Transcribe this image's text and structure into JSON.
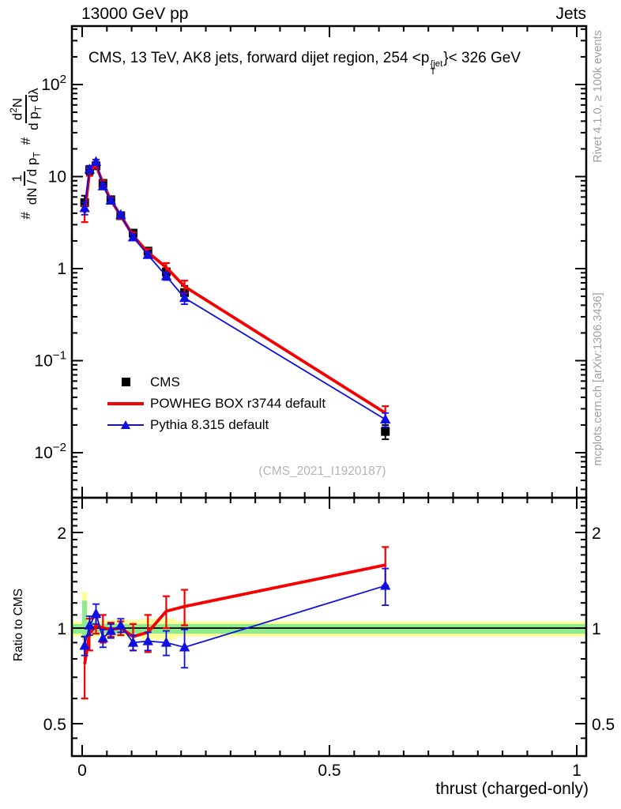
{
  "header": {
    "left": "13000 GeV pp",
    "right": "Jets"
  },
  "title": {
    "prefix": "CMS, 13 TeV, AK8 jets, forward dijet region, 254 <p",
    "sup": "{jet",
    "sub": "T",
    "suffix": "}< 326 GeV"
  },
  "ylabel_main": {
    "hash1": "#",
    "frac1": {
      "num": "1",
      "den_pre": "dN / d p",
      "den_sub": "T"
    },
    "hash2": "#",
    "frac2": {
      "num_pre": "d",
      "num_sup": "2",
      "num_post": "N",
      "den_pre": "d p",
      "den_sub": "T",
      "den_post": " dλ"
    }
  },
  "ylabel_ratio": "Ratio to CMS",
  "xlabel": "thrust (charged-only)",
  "watermark": "(CMS_2021_I1920187)",
  "side_notes": {
    "top": "Rivet 4.1.0, ≥ 100k events",
    "bottom": "mcplots.cern.ch [arXiv:1306.3436]"
  },
  "legend": {
    "items": [
      {
        "label": "CMS",
        "marker": "black-square"
      },
      {
        "label": "POWHEG BOX r3744 default",
        "marker": "red-line"
      },
      {
        "label": "Pythia 8.315 default",
        "marker": "blue-line-triangle"
      }
    ]
  },
  "colors": {
    "cms": "#000000",
    "powheg": "#f40000",
    "pythia": "#0f0fe0",
    "band_yellow": "#ffff99",
    "band_green": "#8fe98f",
    "gray_text": "#9e9e9e",
    "watermark_text": "#b4b4b4"
  },
  "chart_data": {
    "type": "line",
    "title": "CMS, 13 TeV, AK8 jets, forward dijet region, 254 <p^{jet}_T}< 326 GeV",
    "xlabel": "thrust (charged-only)",
    "ylabel": "# 1/(dN/dp_T) # d^2N/(dp_T dλ)",
    "legend_position": "middle-left",
    "grid": false,
    "x_range": [
      0,
      1
    ],
    "y_scale": "log",
    "y_range_main": [
      0.0032,
      430
    ],
    "x": [
      0.005,
      0.015,
      0.028,
      0.042,
      0.058,
      0.078,
      0.103,
      0.133,
      0.17,
      0.207,
      0.613
    ],
    "series": [
      {
        "name": "CMS",
        "marker": "square",
        "color": "#000000",
        "values": [
          5.2,
          11.8,
          13.1,
          8.45,
          5.6,
          3.76,
          2.43,
          1.55,
          0.92,
          0.55,
          0.017
        ],
        "yerr": [
          1.0,
          1.3,
          1.0,
          0.7,
          0.45,
          0.3,
          0.2,
          0.13,
          0.09,
          0.1,
          0.003
        ]
      },
      {
        "name": "POWHEG BOX r3744 default",
        "marker": "line",
        "color": "#f40000",
        "values": [
          4.0,
          11.3,
          13.4,
          8.45,
          5.54,
          3.76,
          2.28,
          1.5,
          1.03,
          0.64,
          0.027
        ],
        "yerr": [
          0.8,
          1.1,
          0.9,
          0.6,
          0.4,
          0.28,
          0.2,
          0.14,
          0.12,
          0.1,
          0.005
        ]
      },
      {
        "name": "Pythia 8.315 default",
        "marker": "triangle",
        "color": "#0f0fe0",
        "values": [
          4.55,
          12.0,
          14.5,
          7.86,
          5.49,
          3.84,
          2.19,
          1.41,
          0.83,
          0.48,
          0.023
        ],
        "yerr": [
          0.7,
          1.0,
          0.8,
          0.5,
          0.35,
          0.22,
          0.16,
          0.1,
          0.08,
          0.07,
          0.004
        ]
      }
    ],
    "ratio": {
      "ylabel": "Ratio to CMS",
      "y_scale": "log",
      "y_range": [
        0.395,
        2.57
      ],
      "series": [
        {
          "name": "POWHEG BOX r3744 default / CMS",
          "color": "#f40000",
          "values": [
            0.77,
            0.96,
            1.02,
            1.0,
            0.99,
            1.0,
            0.94,
            0.97,
            1.13,
            1.17,
            1.58
          ],
          "yerr": [
            0.17,
            0.11,
            0.06,
            0.1,
            0.05,
            0.05,
            0.09,
            0.13,
            0.13,
            0.15,
            0.22
          ]
        },
        {
          "name": "Pythia 8.315 default / CMS",
          "color": "#0f0fe0",
          "values": [
            0.88,
            1.02,
            1.11,
            0.93,
            0.98,
            1.02,
            0.9,
            0.91,
            0.9,
            0.87,
            1.36
          ],
          "yerr": [
            0.06,
            0.07,
            0.08,
            0.06,
            0.05,
            0.05,
            0.05,
            0.06,
            0.08,
            0.12,
            0.18
          ]
        }
      ],
      "bands": {
        "yellow": [
          {
            "x0": -0.021,
            "x1": 1.019,
            "lo": 0.94,
            "hi": 1.05
          },
          {
            "x0": 0.0,
            "x1": 0.01,
            "lo": 0.88,
            "hi": 1.3
          },
          {
            "x0": 0.01,
            "x1": 0.025,
            "lo": 0.93,
            "hi": 1.08
          },
          {
            "x0": 0.025,
            "x1": 0.12,
            "lo": 0.94,
            "hi": 1.06
          },
          {
            "x0": 0.12,
            "x1": 0.19,
            "lo": 0.92,
            "hi": 1.07
          }
        ],
        "green": [
          {
            "x0": -0.021,
            "x1": 1.019,
            "lo": 0.96,
            "hi": 1.03
          },
          {
            "x0": 0.0,
            "x1": 0.01,
            "lo": 0.92,
            "hi": 1.22
          },
          {
            "x0": 0.01,
            "x1": 0.025,
            "lo": 0.96,
            "hi": 1.05
          }
        ]
      }
    },
    "axes": {
      "x": {
        "ticks": [
          {
            "v": 0,
            "label": "0"
          },
          {
            "v": 0.5,
            "label": "0.5"
          },
          {
            "v": 1,
            "label": "1"
          }
        ],
        "minor_step": 0.05
      },
      "y_main": {
        "ticks": [
          {
            "v": 100,
            "label": "10^2"
          },
          {
            "v": 10,
            "label": "10"
          },
          {
            "v": 1,
            "label": "1"
          },
          {
            "v": 0.1,
            "label": "10^-1"
          },
          {
            "v": 0.01,
            "label": "10^-2"
          }
        ]
      },
      "y_ratio": {
        "ticks": [
          {
            "v": 2,
            "label": "2"
          },
          {
            "v": 1,
            "label": "1"
          },
          {
            "v": 0.5,
            "label": "0.5"
          }
        ],
        "minor": [
          0.4,
          0.45,
          0.6,
          0.7,
          0.8,
          0.9,
          1.1,
          1.2,
          1.3,
          1.4,
          1.5,
          1.6,
          1.7,
          1.8,
          1.9,
          2.1,
          2.2,
          2.3,
          2.4,
          2.5
        ]
      }
    }
  }
}
